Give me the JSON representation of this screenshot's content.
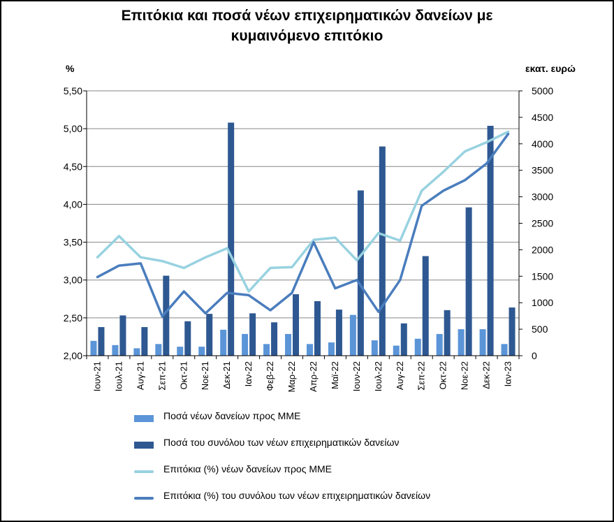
{
  "colors": {
    "sme_bar": "#5b95d8",
    "total_bar": "#2e5891",
    "sme_line": "#98d2e0",
    "total_line": "#4a7dbd",
    "grid": "#868686"
  },
  "chart_data": {
    "type": "bar+line",
    "title_line1": "Επιτόκια και ποσά νέων επιχειρηματικών δανείων με",
    "title_line2": "κυμαινόμενο επιτόκιο",
    "left_axis_label": "%",
    "right_axis_label": "εκατ. ευρώ",
    "left_ylim": [
      2.0,
      5.5
    ],
    "left_ticks": [
      "5,50",
      "5,00",
      "4,50",
      "4,00",
      "3,50",
      "3,00",
      "2,50",
      "2,00"
    ],
    "right_ylim": [
      0,
      5000
    ],
    "right_ticks": [
      "5000",
      "4500",
      "4000",
      "3500",
      "3000",
      "2500",
      "2000",
      "1500",
      "1000",
      "500",
      "0"
    ],
    "categories": [
      "Ιουν-21",
      "Ιουλ-21",
      "Αυγ-21",
      "Σεπ-21",
      "Οκτ-21",
      "Νοε-21",
      "Δεκ-21",
      "Ιαν-22",
      "Φεβ-22",
      "Μαρ-22",
      "Απρ-22",
      "Μαϊ-22",
      "Ιουν-22",
      "Ιουλ-22",
      "Αυγ-22",
      "Σεπ-22",
      "Οκτ-22",
      "Νοε-22",
      "Δεκ-22",
      "Ιαν-23"
    ],
    "series": [
      {
        "name": "Ποσά νέων δανείων προς ΜΜΕ",
        "type": "bar",
        "axis": "right",
        "values": [
          280,
          200,
          140,
          220,
          170,
          170,
          490,
          410,
          220,
          410,
          220,
          250,
          770,
          290,
          190,
          320,
          410,
          500,
          500,
          220
        ]
      },
      {
        "name": "Ποσά του συνόλου των νέων επιχειρηματικών δανείων",
        "type": "bar",
        "axis": "right",
        "values": [
          540,
          760,
          540,
          1510,
          650,
          790,
          4400,
          800,
          630,
          1160,
          1030,
          870,
          3120,
          3950,
          610,
          1880,
          860,
          2800,
          4340,
          910
        ]
      },
      {
        "name": "Επιτόκια (%) νέων δανείων προς ΜΜΕ",
        "type": "line",
        "axis": "left",
        "values": [
          3.3,
          3.58,
          3.3,
          3.25,
          3.16,
          3.3,
          3.42,
          2.85,
          3.16,
          3.17,
          3.53,
          3.56,
          3.26,
          3.62,
          3.52,
          4.18,
          4.43,
          4.7,
          4.82,
          4.96
        ]
      },
      {
        "name": "Επιτόκια (%) του συνόλου των νέων επιχειρηματικών δανείων",
        "type": "line",
        "axis": "left",
        "values": [
          3.04,
          3.19,
          3.22,
          2.52,
          2.85,
          2.56,
          2.83,
          2.8,
          2.6,
          2.83,
          3.5,
          2.89,
          3.0,
          2.58,
          3.0,
          3.98,
          4.18,
          4.32,
          4.54,
          4.93
        ]
      }
    ]
  }
}
